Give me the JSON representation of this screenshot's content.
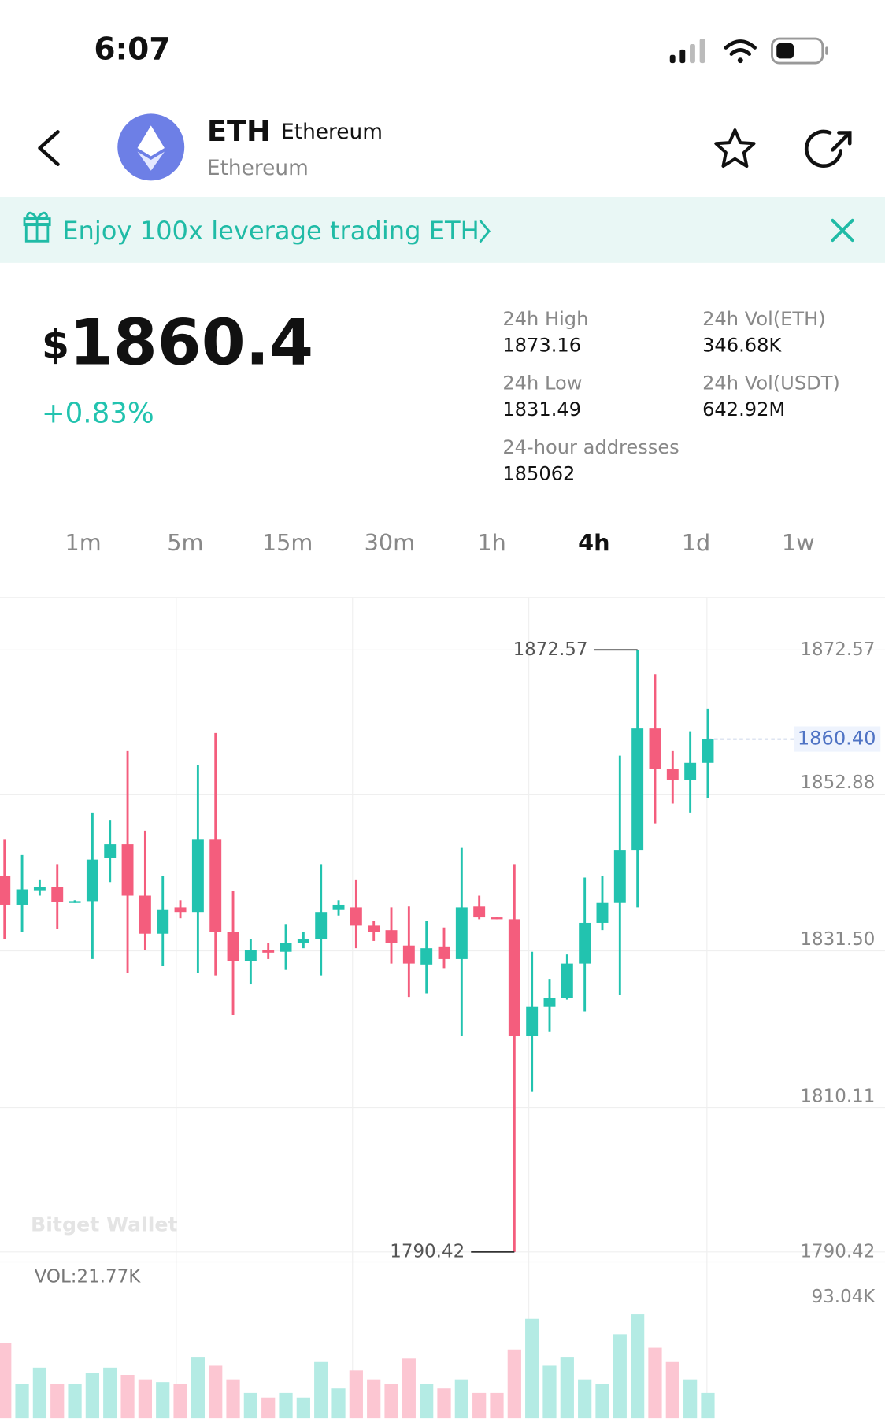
{
  "status_bar": {
    "time": "6:07"
  },
  "header": {
    "symbol": "ETH",
    "name": "Ethereum",
    "subtitle": "Ethereum"
  },
  "banner": {
    "text": "Enjoy 100x leverage trading ETH"
  },
  "price": {
    "currency": "$",
    "value": "1860.4",
    "change": "+0.83%"
  },
  "stats": [
    {
      "label": "24h High",
      "value": "1873.16"
    },
    {
      "label": "24h Vol(ETH)",
      "value": "346.68K"
    },
    {
      "label": "24h Low",
      "value": "1831.49"
    },
    {
      "label": "24h Vol(USDT)",
      "value": "642.92M"
    },
    {
      "label": "24-hour addresses",
      "value": "185062"
    }
  ],
  "intervals": {
    "options": [
      "1m",
      "5m",
      "15m",
      "30m",
      "1h",
      "4h",
      "1d",
      "1w"
    ],
    "active": "4h"
  },
  "watermark": "Bitget Wallet",
  "chart_data": {
    "type": "candlestick",
    "categories": [
      null,
      null,
      null,
      null,
      null,
      null,
      null,
      null,
      null,
      null,
      null,
      null,
      null,
      null,
      null,
      null,
      null,
      null,
      null,
      null,
      null,
      null,
      null,
      null,
      null,
      null,
      null,
      null,
      null,
      null,
      null,
      null,
      null,
      null,
      null,
      null,
      null,
      null,
      null,
      null,
      null
    ],
    "open": [
      1841.73,
      1837.79,
      1839.76,
      1840.25,
      1838.03,
      1838.28,
      1844.2,
      1846.05,
      1839.02,
      1833.84,
      1837.42,
      1836.8,
      1846.67,
      1834.08,
      1830.14,
      1831.62,
      1831.37,
      1832.6,
      1833.1,
      1837.17,
      1837.42,
      1834.95,
      1834.33,
      1832.23,
      1829.64,
      1832.11,
      1830.38,
      1837.54,
      1836.06,
      1835.81,
      1819.9,
      1823.85,
      1825.08,
      1829.77,
      1835.32,
      1838.03,
      1845.19,
      1861.84,
      1856.29,
      1854.81,
      1857.15
    ],
    "high": [
      1846.67,
      1844.57,
      1841.24,
      1843.34,
      1838.4,
      1850.37,
      1849.38,
      1858.75,
      1847.9,
      1841.73,
      1838.4,
      1856.9,
      1861.22,
      1839.64,
      1833.1,
      1832.6,
      1835.07,
      1834.08,
      1843.34,
      1838.4,
      1841.24,
      1835.56,
      1837.42,
      1837.54,
      1835.56,
      1834.7,
      1845.56,
      1839.02,
      1836.06,
      1843.34,
      1831.37,
      1827.67,
      1831.0,
      1841.49,
      1841.73,
      1858.14,
      1872.57,
      1869.24,
      1858.75,
      1861.47,
      1864.55
    ],
    "low": [
      1833.1,
      1834.08,
      1839.02,
      1834.45,
      1838.03,
      1830.38,
      1840.87,
      1828.53,
      1831.62,
      1829.4,
      1835.94,
      1828.53,
      1828.16,
      1822.74,
      1826.93,
      1830.38,
      1828.9,
      1831.86,
      1828.16,
      1836.31,
      1831.86,
      1832.85,
      1829.77,
      1825.2,
      1825.7,
      1829.15,
      1819.9,
      1835.81,
      1835.81,
      1790.42,
      1812.25,
      1820.52,
      1824.83,
      1823.23,
      1834.33,
      1825.45,
      1837.42,
      1848.89,
      1851.6,
      1850.37,
      1852.34
    ],
    "close": [
      1837.79,
      1839.88,
      1840.25,
      1838.16,
      1838.28,
      1843.95,
      1846.05,
      1839.02,
      1833.84,
      1837.17,
      1836.8,
      1846.67,
      1834.08,
      1830.14,
      1831.62,
      1831.25,
      1832.6,
      1833.1,
      1836.8,
      1837.79,
      1834.95,
      1834.08,
      1832.6,
      1829.77,
      1831.86,
      1830.38,
      1837.42,
      1836.06,
      1835.81,
      1819.9,
      1823.85,
      1825.08,
      1829.77,
      1835.32,
      1838.03,
      1845.19,
      1861.84,
      1856.29,
      1854.81,
      1857.15,
      1860.4
    ],
    "up_color": "#22c3af",
    "down_color": "#f45d7d",
    "ylim": [
      1789.06,
      1879.73
    ],
    "yticks": [
      1872.57,
      1852.88,
      {
        "value": 1831.5,
        "label": "1831.50"
      },
      1810.11,
      1790.42
    ],
    "annotations": [
      {
        "value": 1872.57,
        "of": "high"
      },
      {
        "value": 1790.42,
        "of": "low"
      }
    ],
    "last_price": {
      "value": 1860.4,
      "label": "1860.40"
    },
    "volume": {
      "label": "VOL:21.77K",
      "values": [
        60.3,
        27.6,
        40.7,
        27.6,
        27.6,
        36.3,
        40.7,
        34.9,
        31.3,
        29.1,
        27.6,
        49.4,
        42.2,
        31.3,
        20.4,
        16.7,
        20.4,
        16.7,
        45.8,
        24.0,
        38.5,
        31.3,
        27.6,
        48.0,
        27.6,
        24.0,
        31.3,
        20.4,
        20.4,
        55.3,
        80.0,
        42.2,
        49.4,
        31.3,
        27.6,
        67.6,
        83.6,
        56.7,
        45.8,
        31.3,
        20.4
      ],
      "ylim": [
        0,
        93.04
      ],
      "yticks": [
        {
          "value": 93.04,
          "label": "93.04K"
        }
      ],
      "up_color": "#b4ebe4",
      "down_color": "#fcc6d2"
    }
  }
}
